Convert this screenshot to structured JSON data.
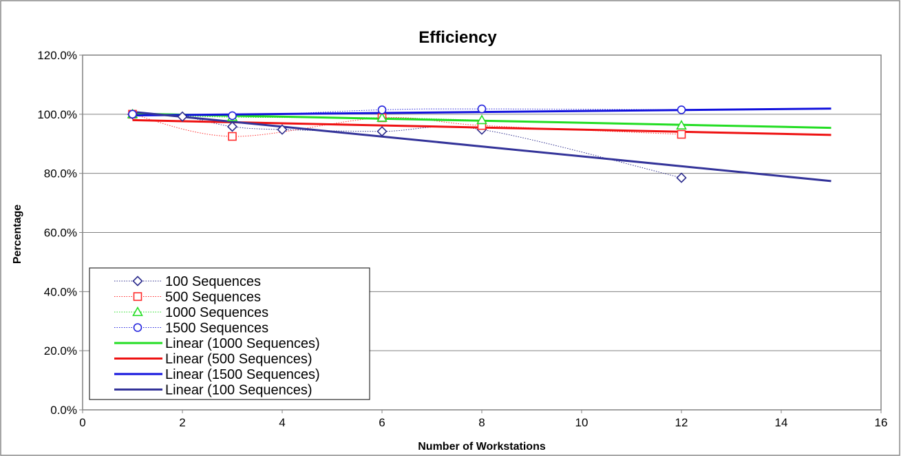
{
  "chart_data": {
    "type": "line",
    "title": "Efficiency",
    "xlabel": "Number of Workstations",
    "ylabel": "Percentage",
    "xlim": [
      0,
      16
    ],
    "ylim": [
      0,
      120
    ],
    "x_ticks": [
      "0",
      "2",
      "4",
      "6",
      "8",
      "10",
      "12",
      "14",
      "16"
    ],
    "y_ticks": [
      "0.0%",
      "20.0%",
      "40.0%",
      "60.0%",
      "80.0%",
      "100.0%",
      "120.0%"
    ],
    "grid": "horizontal",
    "legend_position": "bottom-left",
    "series": [
      {
        "name": "100 Sequences",
        "style": "markers-dotted",
        "marker": "diamond",
        "color": "#2b2b8c",
        "x": [
          1,
          2,
          3,
          4,
          6,
          8,
          12
        ],
        "y": [
          100.0,
          99.2,
          95.8,
          94.8,
          94.2,
          94.8,
          78.5
        ]
      },
      {
        "name": "500 Sequences",
        "style": "markers-dotted",
        "marker": "square",
        "color": "#ff2a2a",
        "x": [
          1,
          3,
          6,
          8,
          12
        ],
        "y": [
          100.0,
          92.5,
          98.8,
          96.2,
          93.2
        ]
      },
      {
        "name": "1000 Sequences",
        "style": "markers-dotted",
        "marker": "triangle",
        "color": "#22dd22",
        "x": [
          1,
          3,
          6,
          8,
          12
        ],
        "y": [
          100.0,
          99.0,
          98.8,
          98.0,
          96.2
        ]
      },
      {
        "name": "1500 Sequences",
        "style": "markers-dotted",
        "marker": "circle",
        "color": "#2222dd",
        "x": [
          1,
          3,
          6,
          8,
          12
        ],
        "y": [
          100.0,
          99.5,
          101.5,
          101.8,
          101.5
        ]
      },
      {
        "name": "Linear (1000 Sequences)",
        "style": "line",
        "color": "#22dd22",
        "x": [
          1,
          15
        ],
        "y": [
          100.2,
          95.4
        ]
      },
      {
        "name": "Linear (500 Sequences)",
        "style": "line",
        "color": "#ee1111",
        "x": [
          1,
          15
        ],
        "y": [
          98.0,
          93.0
        ]
      },
      {
        "name": "Linear (1500 Sequences)",
        "style": "line",
        "color": "#1111dd",
        "x": [
          1,
          15
        ],
        "y": [
          99.6,
          101.9
        ]
      },
      {
        "name": "Linear (100 Sequences)",
        "style": "line",
        "color": "#333399",
        "x": [
          1,
          15
        ],
        "y": [
          100.8,
          77.4
        ]
      }
    ]
  }
}
